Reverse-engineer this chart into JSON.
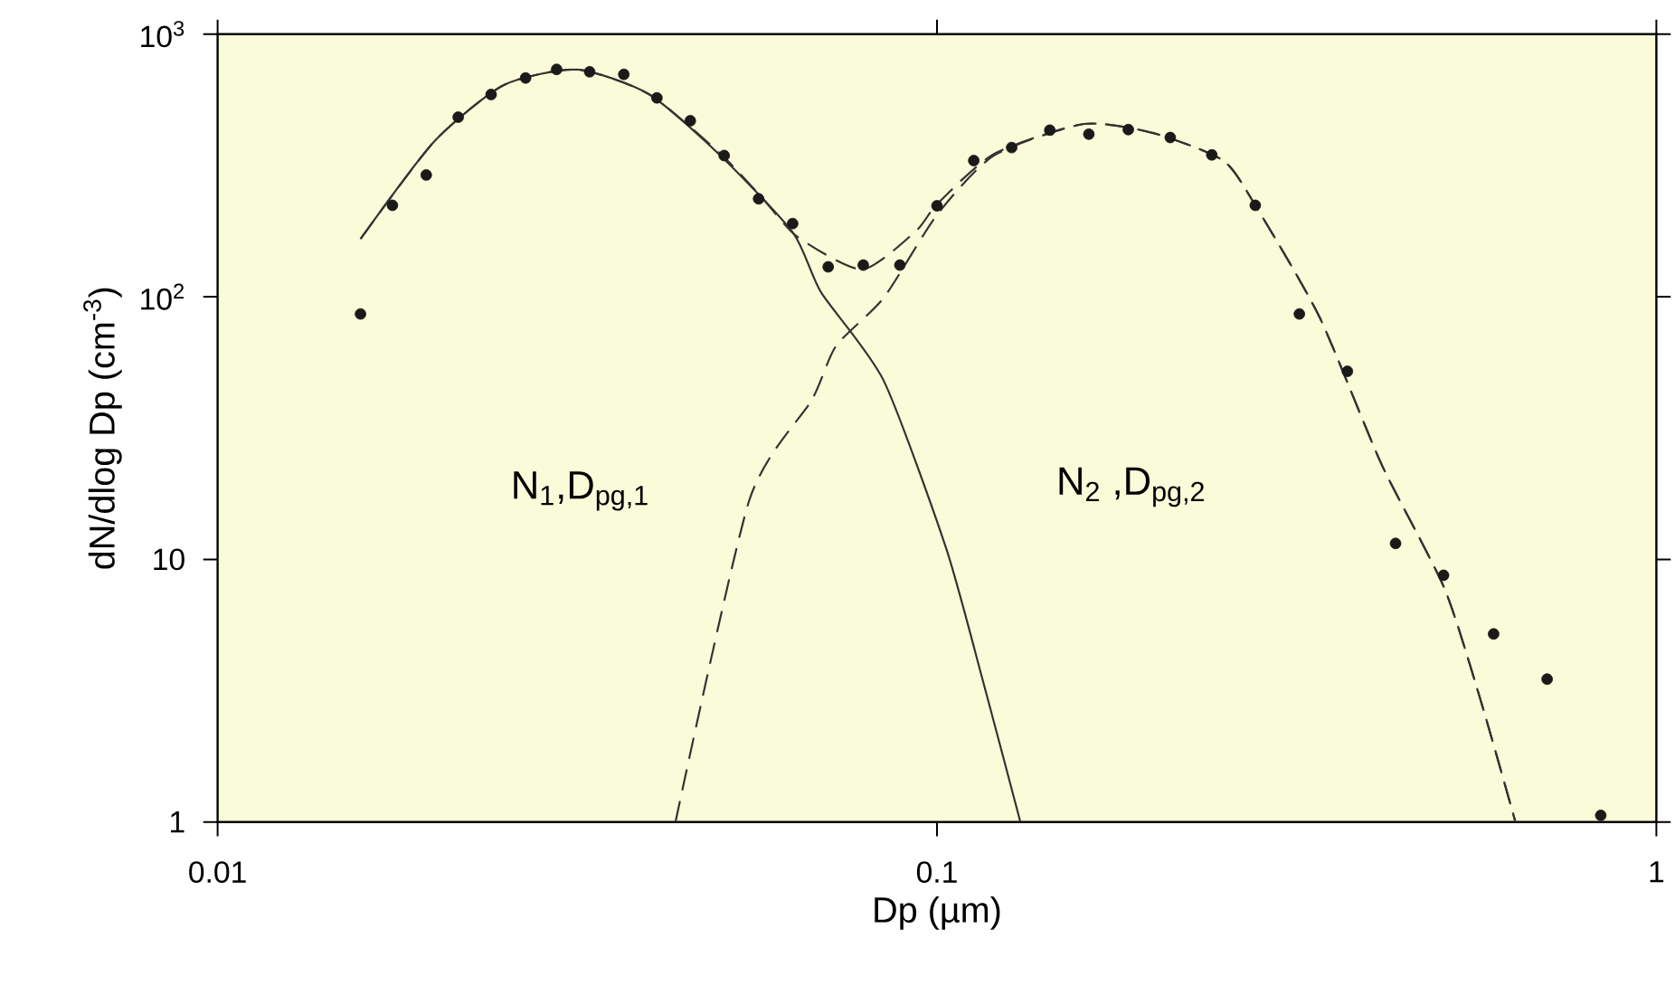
{
  "chart_data": {
    "type": "line",
    "xlabel": "Dp (µm)",
    "ylabel": "dN/dlog Dp (cm$^{-3}$)",
    "log": "xy",
    "grid": false,
    "xlim": [
      0.01,
      1
    ],
    "ylim": [
      1,
      1000
    ],
    "xticks": [
      0.01,
      0.1,
      1
    ],
    "yticks": [
      {
        "value": 1,
        "label": "1"
      },
      {
        "value": 10,
        "label": "10"
      },
      {
        "value": 100,
        "label": "10$^{2}$"
      },
      {
        "value": 1000,
        "label": "10$^{3}$"
      }
    ],
    "series": [
      {
        "type": "scatter",
        "marker": "circle",
        "color": "#1a1a1a",
        "x": [
          0.0158,
          0.0175,
          0.0195,
          0.0216,
          0.024,
          0.0268,
          0.0296,
          0.0329,
          0.0367,
          0.0408,
          0.0454,
          0.0506,
          0.0565,
          0.063,
          0.0706,
          0.079,
          0.0888,
          0.1,
          0.1125,
          0.127,
          0.1435,
          0.1626,
          0.1845,
          0.211,
          0.241,
          0.277,
          0.319,
          0.372,
          0.434,
          0.506,
          0.594,
          0.705,
          0.837
        ],
        "values": [
          86,
          223,
          291,
          483,
          589,
          681,
          734,
          719,
          703,
          572,
          468,
          345,
          236,
          190,
          130,
          132,
          132,
          222,
          330,
          370,
          431,
          416,
          433,
          404,
          347,
          223,
          86,
          52,
          11.5,
          8.7,
          5.2,
          3.5,
          1.06
        ]
      },
      {
        "line_style": "solid",
        "color": "#333333",
        "x": [
          0.0158,
          0.02,
          0.025,
          0.0316,
          0.0398,
          0.05,
          0.0631,
          0.069,
          0.0843,
          0.103,
          0.116,
          0.1306
        ],
        "values": [
          166,
          390,
          640,
          733,
          590,
          345,
          175,
          104,
          48,
          11,
          3.4,
          1
        ]
      },
      {
        "line_style": "dashed",
        "color": "#333333",
        "x": [
          0.0433,
          0.0548,
          0.067,
          0.0724,
          0.0843,
          0.1,
          0.12,
          0.16,
          0.2,
          0.25,
          0.277,
          0.34,
          0.415,
          0.507,
          0.57,
          0.637
        ],
        "values": [
          1,
          16.7,
          40.5,
          65,
          99,
          205,
          345,
          455,
          420,
          330,
          223,
          84,
          23,
          7.8,
          2.9,
          1
        ]
      },
      {
        "line_style": "dashed",
        "color": "#333333",
        "x": [
          0.0158,
          0.02,
          0.025,
          0.0316,
          0.0398,
          0.05,
          0.057,
          0.064,
          0.0787,
          0.0935,
          0.1,
          0.12,
          0.16,
          0.2,
          0.25,
          0.277,
          0.34,
          0.415,
          0.507,
          0.57,
          0.637
        ],
        "values": [
          166,
          390,
          640,
          733,
          590,
          350,
          240,
          169,
          127,
          178,
          225,
          350,
          455,
          420,
          330,
          223,
          84,
          23,
          7.8,
          2.9,
          1
        ]
      }
    ],
    "annotations": [
      "N$_{1}$,D$_{pg,1}$",
      "N$_{2}$ ,D$_{pg,2}$"
    ]
  }
}
